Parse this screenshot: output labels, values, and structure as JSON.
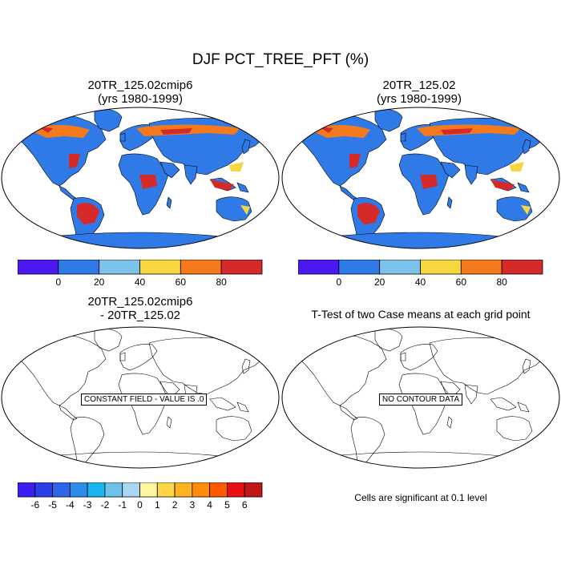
{
  "figure": {
    "title": "DJF PCT_TREE_PFT (%)"
  },
  "panels": {
    "top_left": {
      "title_line1": "20TR_125.02cmip6",
      "title_line2": "(yrs 1980-1999)"
    },
    "top_right": {
      "title_line1": "20TR_125.02",
      "title_line2": "(yrs 1980-1999)"
    },
    "bottom_left": {
      "title_line1": "20TR_125.02cmip6",
      "title_line2": "- 20TR_125.02",
      "box_label": "CONSTANT FIELD - VALUE IS .0"
    },
    "bottom_right": {
      "title_line1": "T-Test of two Case means at each grid point",
      "box_label": "NO CONTOUR DATA",
      "note": "Cells are significant at 0.1 level"
    }
  },
  "colorbars": {
    "main": {
      "colors": [
        "#4b19f0",
        "#2f7ae6",
        "#7cc2ea",
        "#f6d740",
        "#f57a1c",
        "#d42a2a"
      ],
      "tick_labels": [
        "0",
        "20",
        "40",
        "60",
        "80"
      ]
    },
    "diff": {
      "colors": [
        "#3a1ef2",
        "#2a40e6",
        "#2f66e8",
        "#2c8ee8",
        "#1ab4f2",
        "#6ec2ea",
        "#a9d6f2",
        "#fff7a0",
        "#ffd54a",
        "#ffb320",
        "#ff8d0c",
        "#ff5a00",
        "#e81010",
        "#c01818"
      ],
      "tick_labels": [
        "-6",
        "-5",
        "-4",
        "-3",
        "-2",
        "-1",
        "0",
        "1",
        "2",
        "3",
        "4",
        "5",
        "6"
      ]
    }
  }
}
